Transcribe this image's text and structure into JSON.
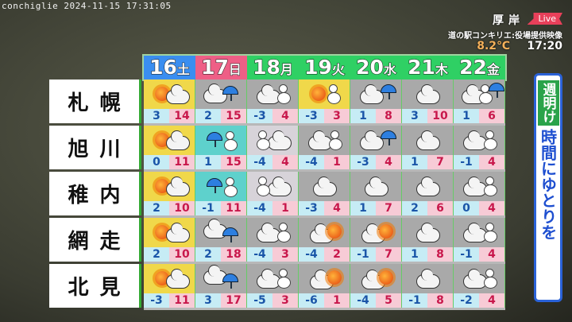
{
  "overlay": {
    "camera_stamp": "conchiglie 2024-11-15 17:31:05",
    "location": "厚岸",
    "live_badge": "Live",
    "source": "道の駅コンキリエ:役場提供映像",
    "temperature": "8.2℃",
    "time": "17:20"
  },
  "colors": {
    "sat": "#3a8ef0",
    "sun": "#ee5f86",
    "weekday": "#2fd064",
    "sunny_bg": "#f0d84a",
    "rain_bg": "#5ed1cc",
    "snow_bg": "#d7d3d9",
    "cloudy_bg": "#a9a9a9"
  },
  "days": [
    {
      "date": "16",
      "wd": "土",
      "color": "#3a8ef0"
    },
    {
      "date": "17",
      "wd": "日",
      "color": "#ee5f86"
    },
    {
      "date": "18",
      "wd": "月",
      "color": "#2fd064"
    },
    {
      "date": "19",
      "wd": "火",
      "color": "#2fd064"
    },
    {
      "date": "20",
      "wd": "水",
      "color": "#2fd064"
    },
    {
      "date": "21",
      "wd": "木",
      "color": "#2fd064"
    },
    {
      "date": "22",
      "wd": "金",
      "color": "#2fd064"
    }
  ],
  "cities": [
    {
      "name": "札幌",
      "forecast": [
        {
          "icon": "sun-cloud",
          "bg": "#f0d84a",
          "lo": "3",
          "hi": "14"
        },
        {
          "icon": "cloud-rain",
          "bg": "#a9a9a9",
          "lo": "2",
          "hi": "15"
        },
        {
          "icon": "cloud-snow",
          "bg": "#a9a9a9",
          "lo": "-3",
          "hi": "4"
        },
        {
          "icon": "sun-snow",
          "bg": "#f0d84a",
          "lo": "-3",
          "hi": "3"
        },
        {
          "icon": "cloud-rain-small",
          "bg": "#a9a9a9",
          "lo": "1",
          "hi": "8"
        },
        {
          "icon": "cloud",
          "bg": "#a9a9a9",
          "lo": "3",
          "hi": "10"
        },
        {
          "icon": "cloud-snow-rain",
          "bg": "#a9a9a9",
          "lo": "1",
          "hi": "6"
        }
      ]
    },
    {
      "name": "旭川",
      "forecast": [
        {
          "icon": "sun-cloud",
          "bg": "#f0d84a",
          "lo": "0",
          "hi": "11"
        },
        {
          "icon": "rain-snow",
          "bg": "#5ed1cc",
          "lo": "1",
          "hi": "15"
        },
        {
          "icon": "snow-cloud",
          "bg": "#d7d3d9",
          "lo": "-4",
          "hi": "4"
        },
        {
          "icon": "cloud-snow",
          "bg": "#a9a9a9",
          "lo": "-4",
          "hi": "1"
        },
        {
          "icon": "cloud-rain-small",
          "bg": "#a9a9a9",
          "lo": "-3",
          "hi": "4"
        },
        {
          "icon": "cloud",
          "bg": "#a9a9a9",
          "lo": "1",
          "hi": "7"
        },
        {
          "icon": "cloud-snow",
          "bg": "#a9a9a9",
          "lo": "-1",
          "hi": "4"
        }
      ]
    },
    {
      "name": "稚内",
      "forecast": [
        {
          "icon": "sun-cloud",
          "bg": "#f0d84a",
          "lo": "2",
          "hi": "10"
        },
        {
          "icon": "rain-snow",
          "bg": "#5ed1cc",
          "lo": "-1",
          "hi": "11"
        },
        {
          "icon": "snow-cloud",
          "bg": "#d7d3d9",
          "lo": "-4",
          "hi": "1"
        },
        {
          "icon": "cloud",
          "bg": "#a9a9a9",
          "lo": "-3",
          "hi": "4"
        },
        {
          "icon": "cloud",
          "bg": "#a9a9a9",
          "lo": "1",
          "hi": "7"
        },
        {
          "icon": "cloud",
          "bg": "#a9a9a9",
          "lo": "2",
          "hi": "6"
        },
        {
          "icon": "cloud-snow",
          "bg": "#a9a9a9",
          "lo": "0",
          "hi": "4"
        }
      ]
    },
    {
      "name": "網走",
      "forecast": [
        {
          "icon": "sun-cloud",
          "bg": "#f0d84a",
          "lo": "2",
          "hi": "10"
        },
        {
          "icon": "cloud-rain-wind",
          "bg": "#a9a9a9",
          "lo": "2",
          "hi": "18"
        },
        {
          "icon": "cloud-snow",
          "bg": "#a9a9a9",
          "lo": "-4",
          "hi": "3"
        },
        {
          "icon": "cloud-sun",
          "bg": "#a9a9a9",
          "lo": "-4",
          "hi": "2"
        },
        {
          "icon": "cloud-sun",
          "bg": "#a9a9a9",
          "lo": "-1",
          "hi": "7"
        },
        {
          "icon": "cloud",
          "bg": "#a9a9a9",
          "lo": "1",
          "hi": "8"
        },
        {
          "icon": "cloud-snow",
          "bg": "#a9a9a9",
          "lo": "-1",
          "hi": "4"
        }
      ]
    },
    {
      "name": "北見",
      "forecast": [
        {
          "icon": "sun-cloud",
          "bg": "#f0d84a",
          "lo": "-3",
          "hi": "11"
        },
        {
          "icon": "cloud-rain-wind",
          "bg": "#a9a9a9",
          "lo": "3",
          "hi": "17"
        },
        {
          "icon": "cloud-snow",
          "bg": "#a9a9a9",
          "lo": "-5",
          "hi": "3"
        },
        {
          "icon": "cloud-sun",
          "bg": "#a9a9a9",
          "lo": "-6",
          "hi": "1"
        },
        {
          "icon": "cloud-sun",
          "bg": "#a9a9a9",
          "lo": "-4",
          "hi": "5"
        },
        {
          "icon": "cloud",
          "bg": "#a9a9a9",
          "lo": "-1",
          "hi": "8"
        },
        {
          "icon": "cloud-snow",
          "bg": "#a9a9a9",
          "lo": "-2",
          "hi": "4"
        }
      ]
    }
  ],
  "side_banner": {
    "tag": "週明け",
    "message": "時間にゆとりを"
  }
}
